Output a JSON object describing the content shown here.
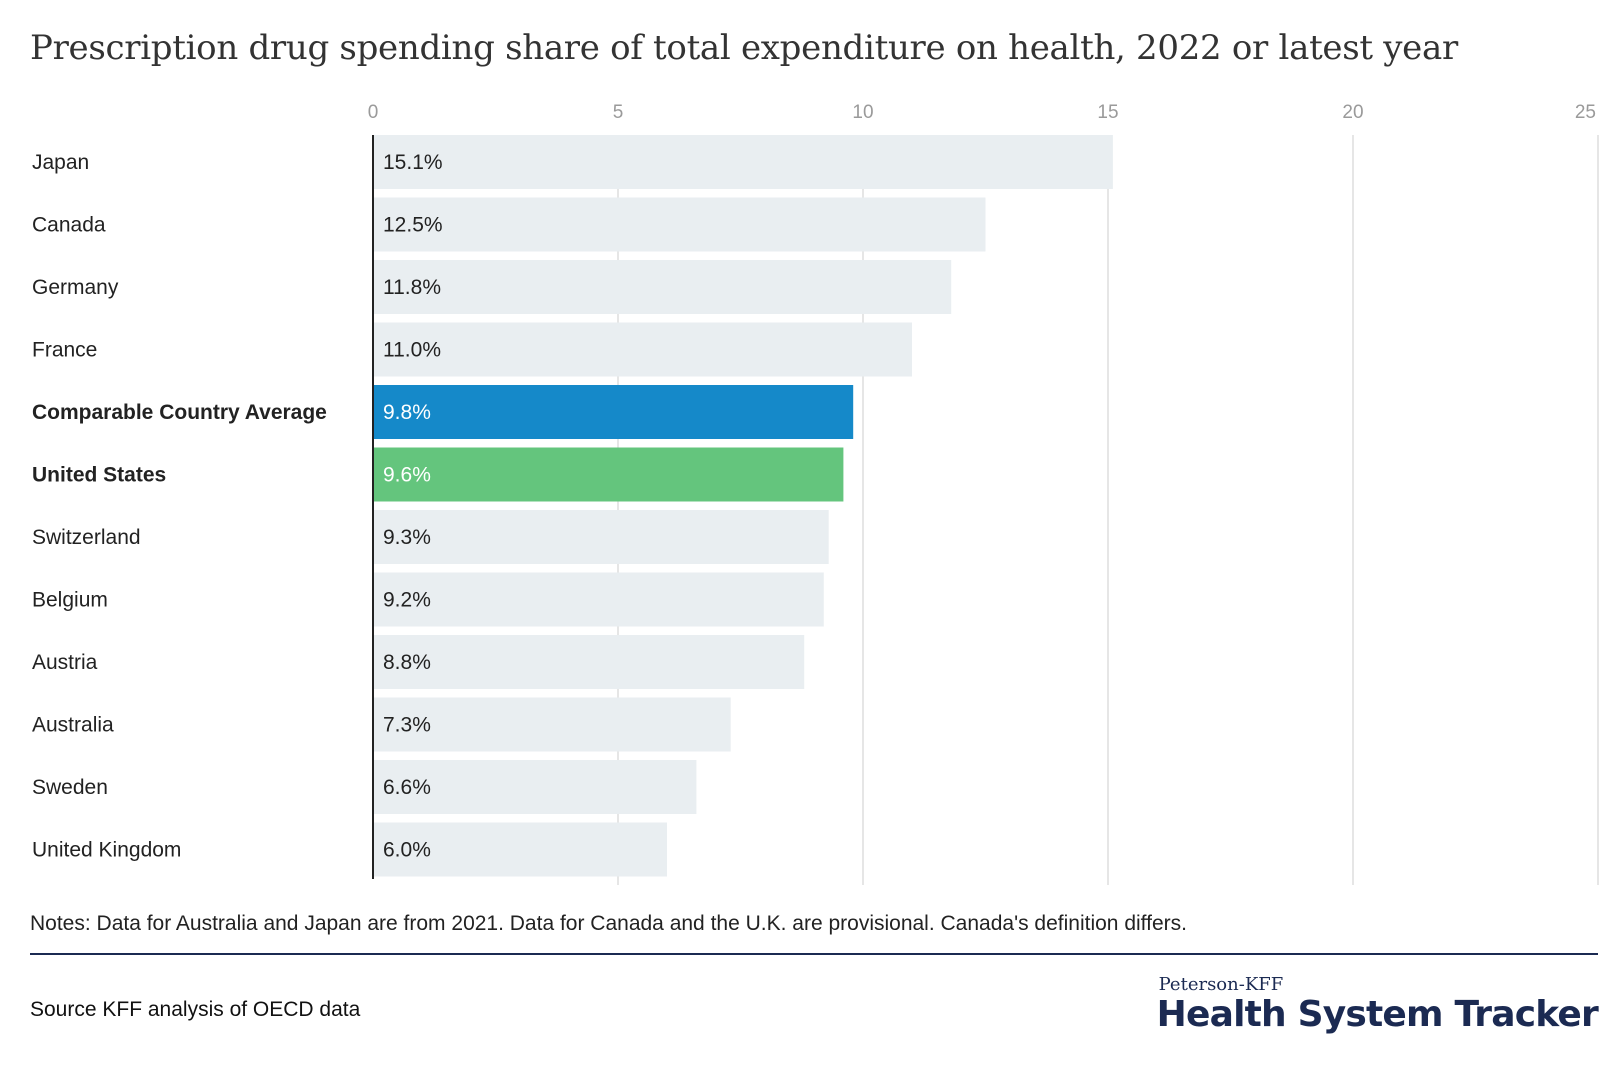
{
  "chart_data": {
    "type": "bar",
    "orientation": "horizontal",
    "title": "Prescription drug spending share of total expenditure on health, 2022 or latest year",
    "xlabel": "",
    "ylabel": "",
    "xlim": [
      0,
      25
    ],
    "xticks": [
      0,
      5,
      10,
      15,
      20,
      25
    ],
    "grid": true,
    "categories": [
      "Japan",
      "Canada",
      "Germany",
      "France",
      "Comparable Country Average",
      "United States",
      "Switzerland",
      "Belgium",
      "Austria",
      "Australia",
      "Sweden",
      "United Kingdom"
    ],
    "values": [
      15.1,
      12.5,
      11.8,
      11.0,
      9.8,
      9.6,
      9.3,
      9.2,
      8.8,
      7.3,
      6.6,
      6.0
    ],
    "labels": [
      "15.1%",
      "12.5%",
      "11.8%",
      "11.0%",
      "9.8%",
      "9.6%",
      "9.3%",
      "9.2%",
      "8.8%",
      "7.3%",
      "6.6%",
      "6.0%"
    ],
    "bold_categories": [
      "Comparable Country Average",
      "United States"
    ],
    "colors": {
      "default": "#e9eef1",
      "Comparable Country Average": "#1589c9",
      "United States": "#64c57d",
      "grid": "#dddddd",
      "axis": "#222222",
      "tick_text": "#9a9a9a"
    }
  },
  "notes": "Notes: Data for Australia and Japan are from 2021. Data for Canada and the U.K. are provisional. Canada's definition differs.",
  "source": "Source KFF analysis of OECD data",
  "brand": {
    "top": "Peterson-KFF",
    "main": "Health System Tracker"
  }
}
